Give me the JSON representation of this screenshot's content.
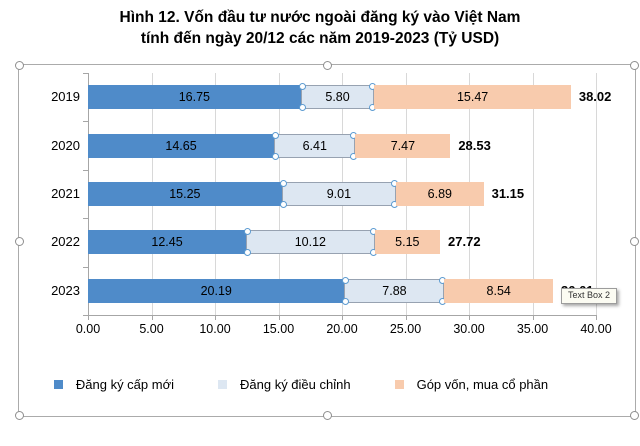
{
  "title": {
    "line1": "Hình 12. Vốn đầu tư nước ngoài đăng ký vào Việt Nam",
    "line2": "tính đến ngày 20/12 các năm 2019-2023 (Tỷ USD)"
  },
  "chart_data": {
    "type": "bar",
    "orientation": "horizontal",
    "stacked": true,
    "title": "Hình 12. Vốn đầu tư nước ngoài đăng ký vào Việt Nam tính đến ngày 20/12 các năm 2019-2023 (Tỷ USD)",
    "categories": [
      "2019",
      "2020",
      "2021",
      "2022",
      "2023"
    ],
    "series": [
      {
        "name": "Đăng ký cấp mới",
        "color": "#4F8BC9",
        "values": [
          16.75,
          14.65,
          15.25,
          12.45,
          20.19
        ],
        "labels": [
          "16.75",
          "14.65",
          "15.25",
          "12.45",
          "20.19"
        ]
      },
      {
        "name": "Đăng ký điều chỉnh",
        "color": "#DDE7F2",
        "values": [
          5.8,
          6.41,
          9.01,
          10.12,
          7.88
        ],
        "labels": [
          "5.80",
          "6.41",
          "9.01",
          "10.12",
          "7.88"
        ]
      },
      {
        "name": "Góp vốn, mua cổ phần",
        "color": "#F8CBAD",
        "values": [
          15.47,
          7.47,
          6.89,
          5.15,
          8.54
        ],
        "labels": [
          "15.47",
          "7.47",
          "6.89",
          "5.15",
          "8.54"
        ]
      }
    ],
    "totals": [
      "38.02",
      "28.53",
      "31.15",
      "27.72",
      "36.61"
    ],
    "xlim": [
      0,
      40
    ],
    "x_tick_step": 5,
    "x_ticks": [
      "0.00",
      "5.00",
      "10.00",
      "15.00",
      "20.00",
      "25.00",
      "30.00",
      "35.00",
      "40.00"
    ],
    "grid": true,
    "legend_position": "bottom",
    "selected_series_index": 1
  },
  "overlay": {
    "tooltip_text": "Text Box 2"
  }
}
